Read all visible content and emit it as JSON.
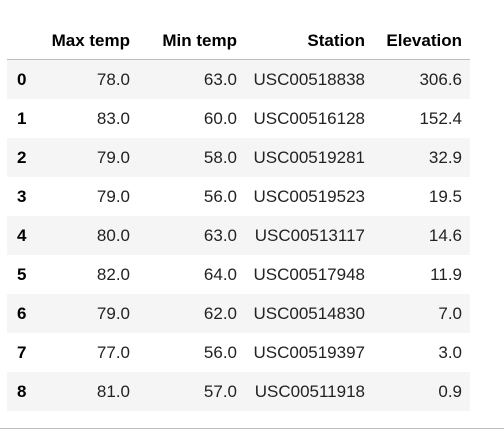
{
  "table": {
    "columns": [
      "",
      "Max temp",
      "Min temp",
      "Station",
      "Elevation"
    ],
    "rows": [
      {
        "index": "0",
        "max_temp": "78.0",
        "min_temp": "63.0",
        "station": "USC00518838",
        "elevation": "306.6"
      },
      {
        "index": "1",
        "max_temp": "83.0",
        "min_temp": "60.0",
        "station": "USC00516128",
        "elevation": "152.4"
      },
      {
        "index": "2",
        "max_temp": "79.0",
        "min_temp": "58.0",
        "station": "USC00519281",
        "elevation": "32.9"
      },
      {
        "index": "3",
        "max_temp": "79.0",
        "min_temp": "56.0",
        "station": "USC00519523",
        "elevation": "19.5"
      },
      {
        "index": "4",
        "max_temp": "80.0",
        "min_temp": "63.0",
        "station": "USC00513117",
        "elevation": "14.6"
      },
      {
        "index": "5",
        "max_temp": "82.0",
        "min_temp": "64.0",
        "station": "USC00517948",
        "elevation": "11.9"
      },
      {
        "index": "6",
        "max_temp": "79.0",
        "min_temp": "62.0",
        "station": "USC00514830",
        "elevation": "7.0"
      },
      {
        "index": "7",
        "max_temp": "77.0",
        "min_temp": "56.0",
        "station": "USC00519397",
        "elevation": "3.0"
      },
      {
        "index": "8",
        "max_temp": "81.0",
        "min_temp": "57.0",
        "station": "USC00511918",
        "elevation": "0.9"
      }
    ]
  },
  "colors": {
    "stripe": "#f5f5f5",
    "rule": "#bdbdbd"
  }
}
